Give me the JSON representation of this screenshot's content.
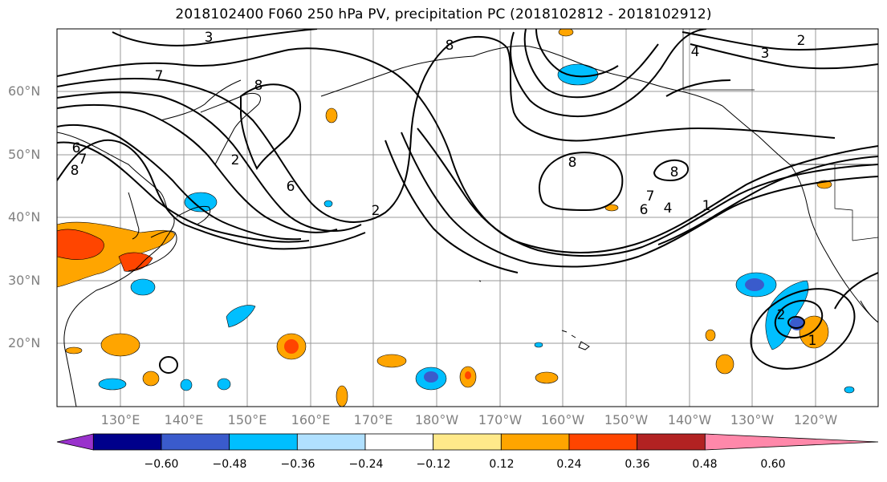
{
  "title": "2018102400 F060 250 hPa PV, precipitation PC (2018102812 - 2018102912)",
  "lat_labels": [
    "60°N",
    "50°N",
    "40°N",
    "30°N",
    "20°N"
  ],
  "lon_labels": [
    "130°E",
    "140°E",
    "150°E",
    "160°E",
    "170°E",
    "180°W",
    "170°W",
    "160°W",
    "150°W",
    "140°W",
    "130°W",
    "120°W"
  ],
  "contour_labels": [
    "3",
    "7",
    "8",
    "6",
    "7",
    "8",
    "2",
    "6",
    "8",
    "2",
    "8",
    "8",
    "4",
    "3",
    "2",
    "6",
    "7",
    "4",
    "1",
    "2",
    "1"
  ],
  "colorbar": {
    "ticks": [
      "−0.60",
      "−0.48",
      "−0.36",
      "−0.24",
      "−0.12",
      "0.12",
      "0.24",
      "0.36",
      "0.48",
      "0.60"
    ],
    "colors": [
      "#9932cc",
      "#00008b",
      "#3a5bcc",
      "#00bfff",
      "#b0e0ff",
      "#ffffff",
      "#ffe98a",
      "#ffa500",
      "#ff4500",
      "#b22222",
      "#ff88aa"
    ]
  },
  "colors": {
    "positive_low": "#ffa500",
    "positive_mid": "#ff4500",
    "negative_low": "#00bfff",
    "negative_mid": "#3a5bcc",
    "contour": "#000000",
    "grid": "#999999"
  }
}
